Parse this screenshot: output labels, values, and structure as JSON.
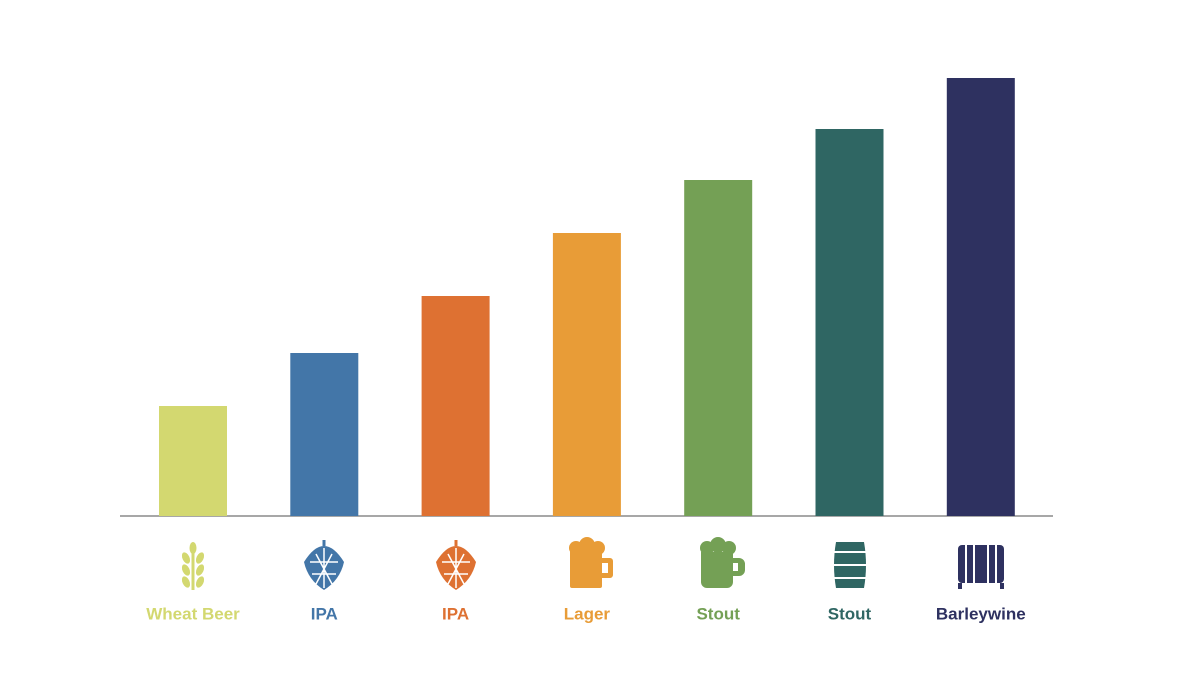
{
  "chart_data": {
    "type": "bar",
    "categories": [
      "Wheat Beer",
      "IPA",
      "IPA",
      "Lager",
      "Stout",
      "Stout",
      "Barleywine"
    ],
    "values": [
      110,
      163,
      220,
      283,
      336,
      387,
      438
    ],
    "colors": [
      "#d3d870",
      "#4376a8",
      "#de7132",
      "#e89c37",
      "#74a055",
      "#2f6663",
      "#2e3160"
    ],
    "ylim": [
      0,
      450
    ]
  }
}
